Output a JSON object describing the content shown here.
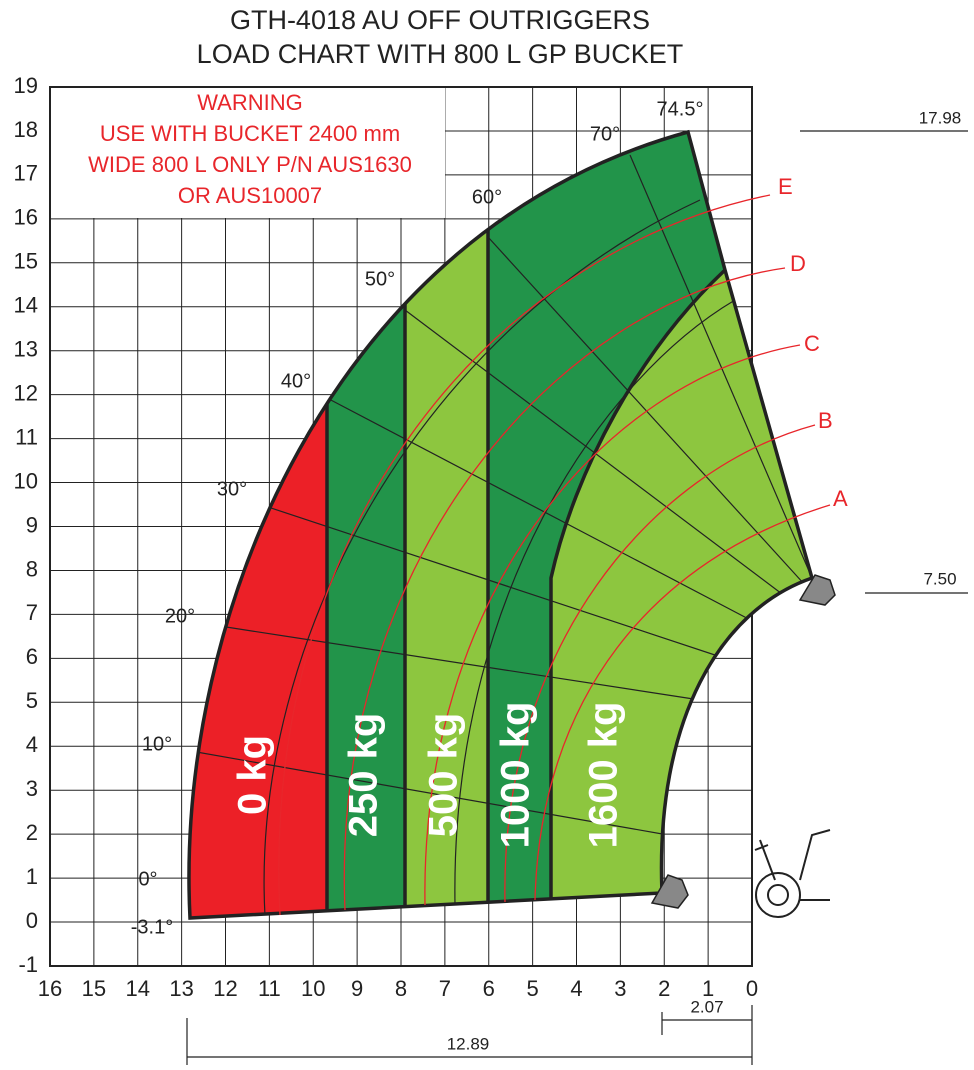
{
  "title": [
    "GTH-4018 AU OFF OUTRIGGERS",
    "LOAD CHART WITH 800 L GP BUCKET"
  ],
  "warning": [
    "WARNING",
    "USE WITH BUCKET 2400 mm",
    "WIDE 800 L ONLY P/N AUS1630",
    "OR AUS10007"
  ],
  "x_axis": {
    "ticks": [
      16,
      15,
      14,
      13,
      12,
      11,
      10,
      9,
      8,
      7,
      6,
      5,
      4,
      3,
      2,
      1,
      0
    ]
  },
  "y_axis": {
    "ticks": [
      -1,
      0,
      1,
      2,
      3,
      4,
      5,
      6,
      7,
      8,
      9,
      10,
      11,
      12,
      13,
      14,
      15,
      16,
      17,
      18,
      19
    ]
  },
  "angles": [
    "74.5°",
    "70°",
    "60°",
    "50°",
    "40°",
    "30°",
    "20°",
    "10°",
    "0°",
    "-3.1°"
  ],
  "zones": [
    "0 kg",
    "250 kg",
    "500 kg",
    "1000 kg",
    "1600 kg"
  ],
  "curves": [
    "E",
    "D",
    "C",
    "B",
    "A"
  ],
  "dimensions": [
    "17.98",
    "7.50",
    "2.07",
    "12.89"
  ]
}
